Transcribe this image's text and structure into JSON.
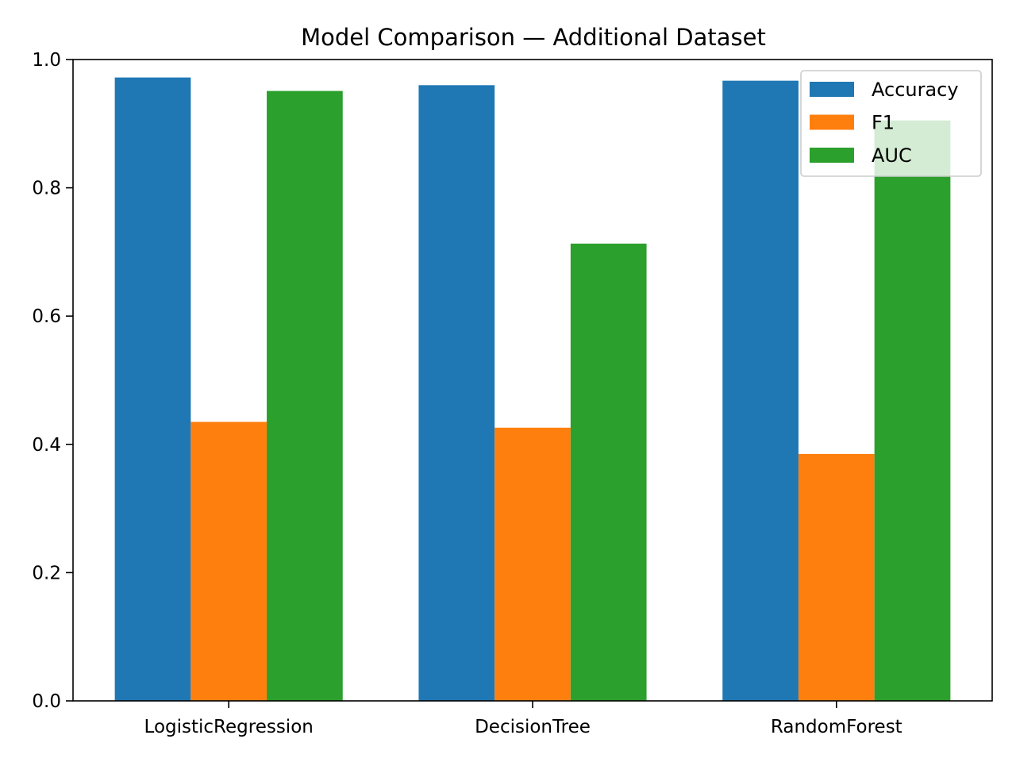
{
  "chart_data": {
    "type": "bar",
    "title": "Model Comparison — Additional Dataset",
    "xlabel": "",
    "ylabel": "",
    "categories": [
      "LogisticRegression",
      "DecisionTree",
      "RandomForest"
    ],
    "series": [
      {
        "name": "Accuracy",
        "color": "#1f77b4",
        "values": [
          0.972,
          0.96,
          0.967
        ]
      },
      {
        "name": "F1",
        "color": "#ff7f0e",
        "values": [
          0.435,
          0.426,
          0.385
        ]
      },
      {
        "name": "AUC",
        "color": "#2ca02c",
        "values": [
          0.951,
          0.713,
          0.905
        ]
      }
    ],
    "ylim": [
      0,
      1.0
    ],
    "yticks": [
      "0.0",
      "0.2",
      "0.4",
      "0.6",
      "0.8",
      "1.0"
    ],
    "ytick_values": [
      0,
      0.2,
      0.4,
      0.6,
      0.8,
      1.0
    ],
    "grid": false,
    "legend_position": "top-right"
  }
}
